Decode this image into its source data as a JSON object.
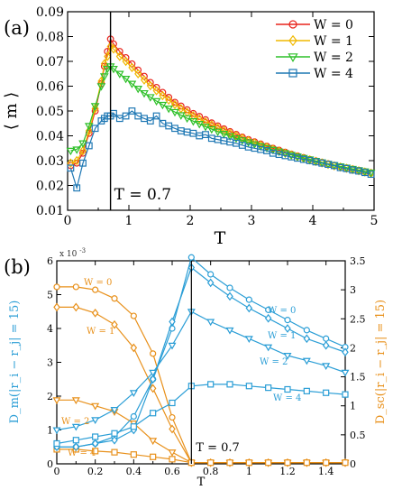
{
  "chart_data": [
    {
      "type": "line",
      "panel_label": "(a)",
      "xlabel": "T",
      "ylabel": "⟨ m ⟩",
      "xlim": [
        0,
        5
      ],
      "ylim": [
        0.01,
        0.09
      ],
      "xticks": [
        0,
        1,
        2,
        3,
        4,
        5
      ],
      "yticks": [
        0.01,
        0.02,
        0.03,
        0.04,
        0.05,
        0.06,
        0.07,
        0.08,
        0.09
      ],
      "ytick_labels": [
        "0.01",
        "0.02",
        "0.03",
        "0.04",
        "0.05",
        "0.06",
        "0.07",
        "0.08",
        "0.09"
      ],
      "grid": false,
      "legend": "top-right",
      "vline": {
        "x": 0.7,
        "label": "T = 0.7"
      },
      "x": [
        0.05,
        0.15,
        0.25,
        0.35,
        0.45,
        0.55,
        0.6,
        0.65,
        0.7,
        0.75,
        0.85,
        0.95,
        1.05,
        1.15,
        1.25,
        1.35,
        1.45,
        1.55,
        1.65,
        1.75,
        1.85,
        1.95,
        2.05,
        2.15,
        2.25,
        2.35,
        2.45,
        2.55,
        2.65,
        2.75,
        2.85,
        2.95,
        3.05,
        3.15,
        3.25,
        3.35,
        3.45,
        3.55,
        3.65,
        3.75,
        3.85,
        3.95,
        4.05,
        4.15,
        4.25,
        4.35,
        4.45,
        4.55,
        4.65,
        4.75,
        4.85,
        4.95
      ],
      "series": [
        {
          "name": "W = 0",
          "color": "#e8231b",
          "marker": "circle",
          "values": [
            0.028,
            0.029,
            0.033,
            0.041,
            0.05,
            0.061,
            0.068,
            0.074,
            0.079,
            0.077,
            0.074,
            0.0715,
            0.069,
            0.0665,
            0.064,
            0.0615,
            0.0595,
            0.0575,
            0.0555,
            0.0535,
            0.052,
            0.0505,
            0.049,
            0.0478,
            0.0465,
            0.0452,
            0.044,
            0.0428,
            0.0417,
            0.0406,
            0.0395,
            0.0385,
            0.0376,
            0.0367,
            0.0358,
            0.035,
            0.0342,
            0.0334,
            0.0326,
            0.0319,
            0.0312,
            0.0305,
            0.0299,
            0.0293,
            0.0287,
            0.0281,
            0.0276,
            0.0271,
            0.0266,
            0.0261,
            0.0256,
            0.0251
          ]
        },
        {
          "name": "W = 1",
          "color": "#f0b800",
          "marker": "diamond",
          "values": [
            0.029,
            0.03,
            0.034,
            0.042,
            0.051,
            0.062,
            0.069,
            0.072,
            0.076,
            0.075,
            0.072,
            0.07,
            0.0675,
            0.065,
            0.0625,
            0.0602,
            0.0582,
            0.0562,
            0.0544,
            0.0526,
            0.051,
            0.0495,
            0.0481,
            0.0468,
            0.0456,
            0.0444,
            0.0432,
            0.0421,
            0.041,
            0.04,
            0.039,
            0.038,
            0.0371,
            0.0362,
            0.0354,
            0.0346,
            0.0338,
            0.033,
            0.0323,
            0.0316,
            0.0309,
            0.0303,
            0.0297,
            0.0291,
            0.0285,
            0.0279,
            0.0274,
            0.0269,
            0.0264,
            0.0259,
            0.0254,
            0.0249
          ]
        },
        {
          "name": "W = 2",
          "color": "#2fc02a",
          "marker": "triangle-down",
          "values": [
            0.034,
            0.0345,
            0.037,
            0.044,
            0.052,
            0.06,
            0.064,
            0.067,
            0.068,
            0.067,
            0.065,
            0.063,
            0.061,
            0.059,
            0.0572,
            0.0556,
            0.054,
            0.0525,
            0.051,
            0.0496,
            0.0483,
            0.0471,
            0.0459,
            0.0448,
            0.0437,
            0.0427,
            0.0417,
            0.0408,
            0.0399,
            0.039,
            0.0382,
            0.0374,
            0.0366,
            0.0358,
            0.0351,
            0.0344,
            0.0337,
            0.033,
            0.0323,
            0.0317,
            0.0311,
            0.0305,
            0.0299,
            0.0293,
            0.0287,
            0.0282,
            0.0277,
            0.0272,
            0.0267,
            0.0262,
            0.0257,
            0.0252
          ]
        },
        {
          "name": "W = 4",
          "color": "#1f78b4",
          "marker": "square",
          "values": [
            0.027,
            0.019,
            0.029,
            0.036,
            0.043,
            0.046,
            0.047,
            0.048,
            0.048,
            0.049,
            0.047,
            0.048,
            0.05,
            0.048,
            0.047,
            0.046,
            0.048,
            0.045,
            0.044,
            0.043,
            0.042,
            0.0415,
            0.041,
            0.04,
            0.0405,
            0.039,
            0.0385,
            0.038,
            0.0375,
            0.037,
            0.0362,
            0.0355,
            0.035,
            0.0345,
            0.034,
            0.033,
            0.0325,
            0.032,
            0.0315,
            0.031,
            0.0305,
            0.03,
            0.0295,
            0.029,
            0.0285,
            0.028,
            0.0272,
            0.0268,
            0.0262,
            0.0258,
            0.0252,
            0.0245
          ]
        }
      ]
    },
    {
      "type": "line",
      "panel_label": "(b)",
      "xlabel": "T",
      "ylabel_left": "D_m(|r_i − r_j| = 15)",
      "ylabel_right": "D_sc(|r_i − r_j| = 15)",
      "left_axis_exponent": "x 10",
      "left_axis_exponent_power": "-3",
      "xlim": [
        0,
        1.5
      ],
      "ylim_left": [
        0,
        6
      ],
      "ylim_right": [
        0,
        3.5
      ],
      "xticks": [
        0,
        0.2,
        0.4,
        0.6,
        0.8,
        1,
        1.2,
        1.4
      ],
      "xtick_labels": [
        "0",
        "0.2",
        "0.4",
        "0.6",
        "0.8",
        "1",
        "1.2",
        "1.4"
      ],
      "yticks_left": [
        0,
        1,
        2,
        3,
        4,
        5,
        6
      ],
      "yticks_right": [
        0,
        0.5,
        1,
        1.5,
        2,
        2.5,
        3,
        3.5
      ],
      "ytick_labels_right": [
        "0",
        "0.5",
        "1",
        "1.5",
        "2",
        "2.5",
        "3",
        "3.5"
      ],
      "grid": false,
      "vline": {
        "x": 0.7,
        "label": "T = 0.7"
      },
      "left_color": "#2b9ed6",
      "right_color": "#e8901a",
      "x": [
        0,
        0.1,
        0.2,
        0.3,
        0.4,
        0.5,
        0.6,
        0.7,
        0.8,
        0.9,
        1.0,
        1.1,
        1.2,
        1.3,
        1.4,
        1.5
      ],
      "series_left": [
        {
          "name": "W = 0",
          "marker": "circle",
          "values": [
            0.5,
            0.5,
            0.6,
            0.8,
            1.4,
            2.5,
            4.0,
            6.1,
            5.6,
            5.2,
            4.85,
            4.55,
            4.25,
            3.95,
            3.7,
            3.45
          ]
        },
        {
          "name": "W = 1",
          "marker": "diamond",
          "values": [
            0.5,
            0.5,
            0.6,
            0.7,
            1.0,
            2.5,
            4.2,
            5.8,
            5.35,
            4.95,
            4.6,
            4.3,
            4.0,
            3.7,
            3.5,
            3.3
          ]
        },
        {
          "name": "W = 2",
          "marker": "triangle-down",
          "values": [
            1.0,
            1.1,
            1.3,
            1.6,
            2.1,
            2.7,
            3.5,
            4.5,
            4.2,
            3.95,
            3.7,
            3.45,
            3.2,
            3.05,
            2.9,
            2.7
          ]
        },
        {
          "name": "W = 4",
          "marker": "square",
          "values": [
            0.6,
            0.7,
            0.8,
            0.9,
            1.1,
            1.5,
            1.8,
            2.3,
            2.35,
            2.35,
            2.3,
            2.25,
            2.2,
            2.15,
            2.1,
            2.05
          ]
        }
      ],
      "series_right": [
        {
          "name": "W = 0",
          "marker": "circle",
          "values": [
            3.05,
            3.05,
            3.0,
            2.85,
            2.55,
            1.9,
            0.8,
            0.02,
            0.02,
            0.02,
            0.02,
            0.02,
            0.02,
            0.02,
            0.02,
            0.02
          ]
        },
        {
          "name": "W = 1",
          "marker": "diamond",
          "values": [
            2.7,
            2.7,
            2.6,
            2.4,
            2.0,
            1.3,
            0.6,
            0.02,
            0.02,
            0.02,
            0.02,
            0.02,
            0.02,
            0.02,
            0.02,
            0.02
          ]
        },
        {
          "name": "W = 2",
          "marker": "triangle-down",
          "values": [
            1.1,
            1.1,
            1.0,
            0.9,
            0.7,
            0.4,
            0.2,
            0.02,
            0.02,
            0.02,
            0.02,
            0.02,
            0.02,
            0.02,
            0.02,
            0.02
          ]
        },
        {
          "name": "W = 4",
          "marker": "square",
          "values": [
            0.25,
            0.25,
            0.22,
            0.2,
            0.16,
            0.12,
            0.08,
            0.02,
            0.02,
            0.02,
            0.02,
            0.02,
            0.02,
            0.02,
            0.02,
            0.02
          ]
        }
      ],
      "annotations_left": [
        "W = 0",
        "W = 1",
        "W = 2",
        "W = 4"
      ],
      "annotations_right": [
        "W = 0",
        "W = 1",
        "W = 2",
        "W = 4"
      ]
    }
  ]
}
